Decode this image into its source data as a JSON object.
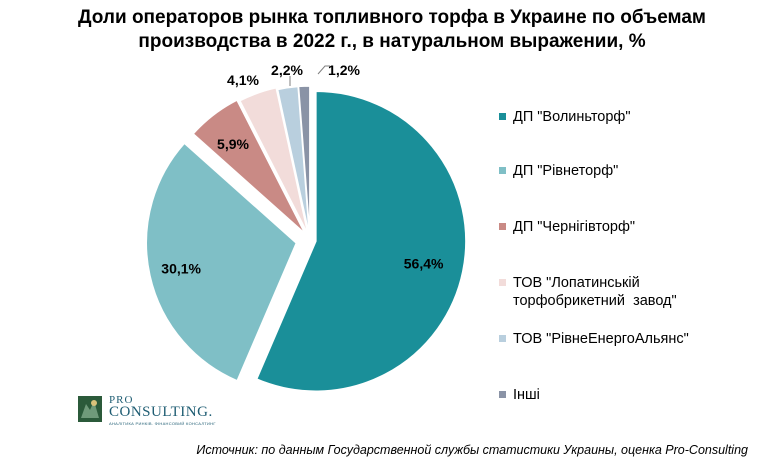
{
  "title_lines": [
    "Доли операторов рынка топливного торфа в Украине по объемам",
    "производства в 2022 г., в натуральном выражении, %"
  ],
  "chart_data": {
    "type": "pie",
    "title": "Доли операторов рынка топливного торфа в Украине по объемам производства в 2022 г., в натуральном выражении, %",
    "series": [
      {
        "slices": [
          {
            "label": "ДП \"Волиньторф\"",
            "legend_lines": [
              "ДП \"Волиньторф\""
            ],
            "value": 56.4,
            "value_label": "56,4%",
            "color": "#1a8f99"
          },
          {
            "label": "ДП \"Рівнеторф\"",
            "legend_lines": [
              "ДП \"Рівнеторф\""
            ],
            "value": 30.1,
            "value_label": "30,1%",
            "color": "#7fbfc6"
          },
          {
            "label": "ДП \"Чернігівторф\"",
            "legend_lines": [
              "ДП \"Чернігівторф\""
            ],
            "value": 5.9,
            "value_label": "5,9%",
            "color": "#c98a85"
          },
          {
            "label": "ТОВ \"Лопатинськiй торфобрикетний завод\"",
            "legend_lines": [
              "ТОВ \"Лопатинськiй",
              "торфобрикетний  завод\""
            ],
            "value": 4.1,
            "value_label": "4,1%",
            "color": "#f2dcda"
          },
          {
            "label": "ТОВ \"РівнеЕнергоАльянс\"",
            "legend_lines": [
              "ТОВ \"РівнеЕнергоАльянс\""
            ],
            "value": 2.2,
            "value_label": "2,2%",
            "color": "#b9cfde"
          },
          {
            "label": "Інші",
            "legend_lines": [
              "Інші"
            ],
            "value": 1.2,
            "value_label": "1,2%",
            "color": "#8a93a6"
          }
        ]
      }
    ],
    "legend_position": "right",
    "exploded": true
  },
  "logo": {
    "line1": "PRO",
    "line2": "CONSULTING.",
    "tagline": "АНАЛІТИКА РИНКІВ. ФІНАНСОВИЙ КОНСАЛТИНГ"
  },
  "source_note": "Источник: по данным Государственной службы статистики Украины, оценка Pro-Consulting"
}
